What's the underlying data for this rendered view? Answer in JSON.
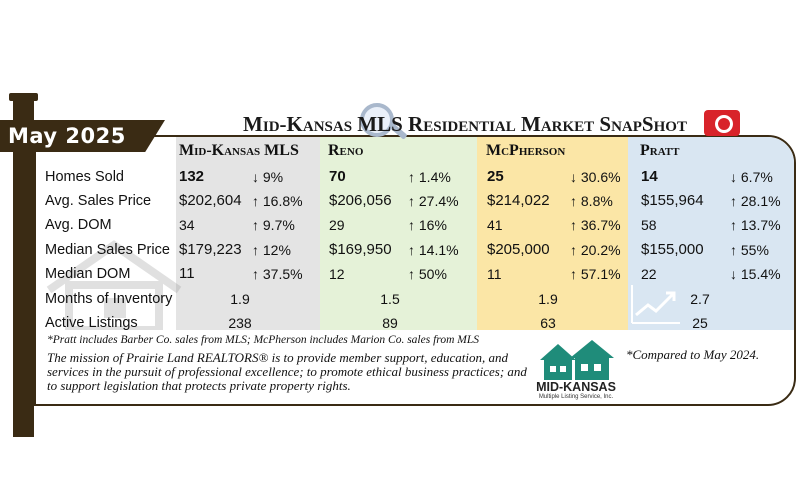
{
  "date_banner": "May 2025",
  "title": "Mid-Kansas MLS Residential Market SnapShot",
  "columns": [
    {
      "name": "Mid-Kansas MLS"
    },
    {
      "name": "Reno"
    },
    {
      "name": "McPherson"
    },
    {
      "name": "Pratt"
    }
  ],
  "rows": [
    {
      "label": "Homes Sold",
      "cells": [
        {
          "value": "132",
          "change": "↓ 9%"
        },
        {
          "value": "70",
          "change": "↑ 1.4%"
        },
        {
          "value": "25",
          "change": "↓ 30.6%"
        },
        {
          "value": "14",
          "change": "↓ 6.7%"
        }
      ]
    },
    {
      "label": "Avg. Sales Price",
      "cells": [
        {
          "value": "$202,604",
          "change": "↑ 16.8%"
        },
        {
          "value": "$206,056",
          "change": "↑ 27.4%"
        },
        {
          "value": "$214,022",
          "change": "↑ 8.8%"
        },
        {
          "value": "$155,964",
          "change": "↑ 28.1%"
        }
      ]
    },
    {
      "label": "Avg. DOM",
      "cells": [
        {
          "value": "34",
          "change": "↑ 9.7%"
        },
        {
          "value": "29",
          "change": "↑ 16%"
        },
        {
          "value": "41",
          "change": "↑ 36.7%"
        },
        {
          "value": "58",
          "change": "↑ 13.7%"
        }
      ]
    },
    {
      "label": "Median Sales Price",
      "cells": [
        {
          "value": "$179,223",
          "change": "↑ 12%"
        },
        {
          "value": "$169,950",
          "change": "↑ 14.1%"
        },
        {
          "value": "$205,000",
          "change": "↑ 20.2%"
        },
        {
          "value": "$155,000",
          "change": "↑ 55%"
        }
      ]
    },
    {
      "label": "Median DOM",
      "cells": [
        {
          "value": "11",
          "change": "↑ 37.5%"
        },
        {
          "value": "12",
          "change": "↑ 50%"
        },
        {
          "value": "11",
          "change": "↑ 57.1%"
        },
        {
          "value": "22",
          "change": "↓ 15.4%"
        }
      ]
    },
    {
      "label": "Months of Inventory",
      "cells": [
        "1.9",
        "1.5",
        "1.9",
        "2.7"
      ]
    },
    {
      "label": "Active Listings",
      "cells": [
        "238",
        "89",
        "63",
        "25"
      ]
    }
  ],
  "footnote": "*Pratt includes Barber Co. sales from MLS; McPherson includes Marion Co. sales from MLS",
  "mission": "The mission of Prairie Land REALTORS® is to provide member support, education, and services in the pursuit of professional excellence; to promote ethical business practices; and to support legislation that protects private property rights.",
  "compared_note": "*Compared to May 2024.",
  "logo": {
    "word": "MID-KANSAS",
    "sub": "Multiple Listing Service, Inc."
  },
  "colors": {
    "post": "#3a2b14",
    "mid_kansas_bg": "#e4e4e4",
    "reno_bg": "#e5f2d8",
    "mcpherson_bg": "#fbe6a6",
    "pratt_bg": "#d9e6f2",
    "logo_teal": "#1f8c7a",
    "camera_red": "#d8232a"
  },
  "icons": [
    "magnifier-icon",
    "camera-icon",
    "house-watermark-icon",
    "trend-up-icon",
    "houses-logo-icon"
  ]
}
